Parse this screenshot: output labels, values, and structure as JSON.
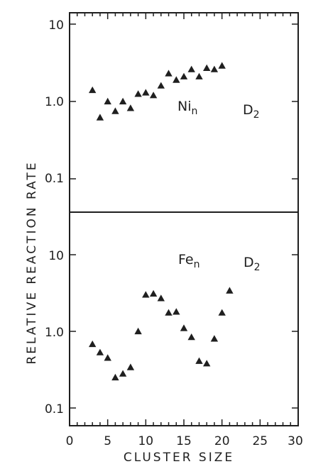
{
  "chart_data": {
    "type": "scatter",
    "xlabel": "CLUSTER SIZE",
    "ylabel": "RELATIVE REACTION RATE",
    "xlim": [
      0,
      30
    ],
    "x_ticks": [
      "0",
      "5",
      "10",
      "15",
      "20",
      "25",
      "30"
    ],
    "y_scale": "log",
    "marker": "filled-triangle",
    "marker_color": "#1f1f1f",
    "grid": false,
    "panels": [
      {
        "position": "top",
        "label_base": "Ni",
        "label_sub": "n",
        "label_reactant": "D",
        "label_reactant_sub": "2",
        "ylim": [
          0.035,
          11
        ],
        "y_ticks": [
          "10",
          "1.0",
          "0.1"
        ],
        "x": [
          3,
          4,
          5,
          6,
          7,
          8,
          9,
          10,
          11,
          12,
          13,
          14,
          15,
          16,
          17,
          18,
          19,
          20
        ],
        "y": [
          1.4,
          0.62,
          1.0,
          0.75,
          1.0,
          0.82,
          1.25,
          1.3,
          1.2,
          1.6,
          2.3,
          1.9,
          2.1,
          2.6,
          2.1,
          2.7,
          2.6,
          2.9
        ]
      },
      {
        "position": "bottom",
        "label_base": "Fe",
        "label_sub": "n",
        "label_reactant": "D",
        "label_reactant_sub": "2",
        "ylim": [
          0.072,
          11
        ],
        "y_ticks": [
          "10",
          "1.0",
          "0.1"
        ],
        "x": [
          3,
          4,
          5,
          6,
          7,
          8,
          9,
          10,
          11,
          12,
          13,
          14,
          15,
          16,
          17,
          18,
          19,
          20,
          21
        ],
        "y": [
          0.68,
          0.53,
          0.45,
          0.25,
          0.28,
          0.34,
          1.0,
          3.0,
          3.1,
          2.7,
          1.75,
          1.8,
          1.1,
          0.84,
          0.41,
          0.38,
          0.8,
          1.75,
          3.4
        ]
      }
    ]
  }
}
